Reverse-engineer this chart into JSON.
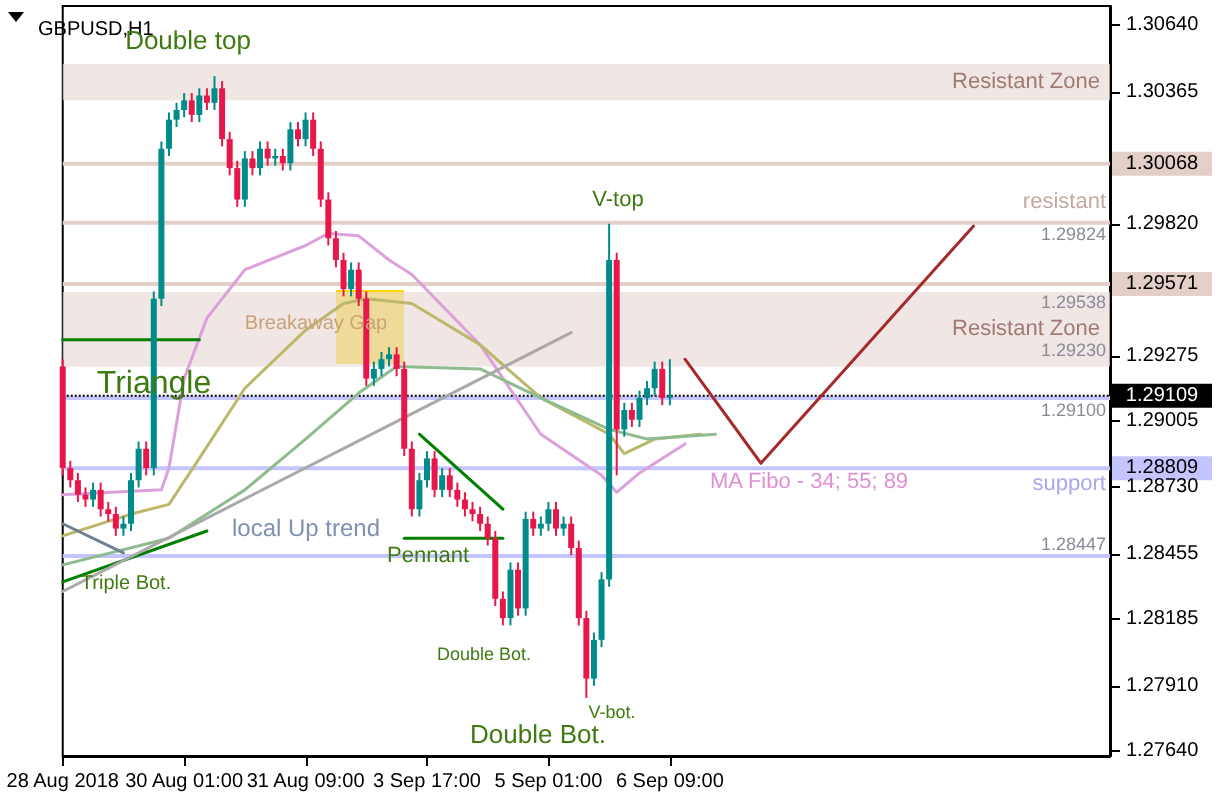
{
  "chart_data": {
    "type": "candlestick",
    "title": "GBPUSD,H1",
    "categories": [
      "28 Aug 2018",
      null,
      null,
      null,
      null,
      null,
      null,
      null,
      null,
      null,
      null,
      null,
      null,
      null,
      null,
      null,
      "30 Aug 01:00",
      null,
      null,
      null,
      null,
      null,
      null,
      null,
      null,
      null,
      null,
      null,
      null,
      null,
      null,
      null,
      "31 Aug 09:00",
      null,
      null,
      null,
      null,
      null,
      null,
      null,
      null,
      null,
      null,
      null,
      null,
      null,
      null,
      null,
      "3 Sep 17:00",
      null,
      null,
      null,
      null,
      null,
      null,
      null,
      null,
      null,
      null,
      null,
      null,
      null,
      null,
      null,
      "5 Sep 01:00",
      null,
      null,
      null,
      null,
      null,
      null,
      null,
      null,
      null,
      null,
      null,
      null,
      null,
      null,
      null,
      "6 Sep 09:00",
      null,
      null,
      null,
      null,
      null,
      null,
      null,
      null,
      null,
      null,
      null,
      null,
      null,
      null,
      null,
      null,
      null,
      null,
      null,
      null,
      null,
      null,
      null,
      null,
      null,
      null,
      null,
      null,
      null,
      null,
      null,
      null,
      null,
      null,
      null,
      null,
      null,
      null,
      null,
      null,
      null,
      null,
      null,
      null,
      null,
      null,
      null,
      null,
      null,
      null,
      null,
      null,
      null,
      null,
      null,
      null,
      null,
      null
    ],
    "ylim": [
      1.2762,
      1.3072
    ],
    "yticks": [
      {
        "value": 1.2764,
        "label": "1.27640"
      },
      {
        "value": 1.2791,
        "label": "1.27910"
      },
      {
        "value": 1.28185,
        "label": "1.28185"
      },
      {
        "value": 1.28455,
        "label": "1.28455"
      },
      {
        "value": 1.2873,
        "label": "1.28730"
      },
      {
        "value": 1.29005,
        "label": "1.29005"
      },
      {
        "value": 1.29275,
        "label": "1.29275"
      },
      {
        "value": 1.2982,
        "label": "1.29820"
      },
      {
        "value": 1.30365,
        "label": "1.30365"
      },
      {
        "value": 1.3064,
        "label": "1.30640"
      }
    ],
    "series": [
      {
        "ohlc": [
          [
            1.2923,
            1.2926,
            1.2878,
            1.2881
          ],
          [
            1.2881,
            1.2884,
            1.2873,
            1.2876
          ],
          [
            1.2876,
            1.2879,
            1.2867,
            1.287
          ],
          [
            1.287,
            1.2873,
            1.2865,
            1.2868
          ],
          [
            1.2868,
            1.2875,
            1.2865,
            1.2872
          ],
          [
            1.2872,
            1.2875,
            1.2861,
            1.2864
          ],
          [
            1.2864,
            1.2867,
            1.2859,
            1.2862
          ],
          [
            1.2862,
            1.2865,
            1.2853,
            1.2856
          ],
          [
            1.2856,
            1.2861,
            1.2853,
            1.2858
          ],
          [
            1.2858,
            1.2879,
            1.2855,
            1.2876
          ],
          [
            1.2876,
            1.2892,
            1.2873,
            1.2889
          ],
          [
            1.2889,
            1.2892,
            1.2878,
            1.2881
          ],
          [
            1.2881,
            1.2954,
            1.2878,
            1.2951
          ],
          [
            1.2951,
            1.3016,
            1.2948,
            1.3013
          ],
          [
            1.3013,
            1.3028,
            1.301,
            1.3025
          ],
          [
            1.3025,
            1.3032,
            1.3022,
            1.3029
          ],
          [
            1.3029,
            1.3036,
            1.3026,
            1.3033
          ],
          [
            1.3033,
            1.3036,
            1.3024,
            1.3027
          ],
          [
            1.3027,
            1.3038,
            1.3024,
            1.3035
          ],
          [
            1.3035,
            1.3038,
            1.3029,
            1.3032
          ],
          [
            1.3032,
            1.3043,
            1.3029,
            1.3038
          ],
          [
            1.3038,
            1.3041,
            1.3014,
            1.3017
          ],
          [
            1.3017,
            1.302,
            1.3002,
            1.3005
          ],
          [
            1.3005,
            1.3008,
            1.2989,
            1.2992
          ],
          [
            1.2992,
            1.3012,
            1.2989,
            1.3009
          ],
          [
            1.3009,
            1.3012,
            1.3002,
            1.3005
          ],
          [
            1.3005,
            1.3016,
            1.3002,
            1.3013
          ],
          [
            1.3013,
            1.3016,
            1.3006,
            1.3009
          ],
          [
            1.3009,
            1.3013,
            1.3006,
            1.301
          ],
          [
            1.301,
            1.3013,
            1.3004,
            1.3007
          ],
          [
            1.3007,
            1.3024,
            1.3004,
            1.3021
          ],
          [
            1.3021,
            1.3024,
            1.3014,
            1.3017
          ],
          [
            1.3017,
            1.3028,
            1.3014,
            1.3025
          ],
          [
            1.3025,
            1.3028,
            1.301,
            1.3013
          ],
          [
            1.3013,
            1.3016,
            1.2989,
            1.2992
          ],
          [
            1.2992,
            1.2995,
            1.2973,
            1.2976
          ],
          [
            1.2976,
            1.2979,
            1.2964,
            1.2967
          ],
          [
            1.2967,
            1.297,
            1.2952,
            1.2955
          ],
          [
            1.2955,
            1.2966,
            1.2952,
            1.2963
          ],
          [
            1.2963,
            1.2966,
            1.2948,
            1.2951
          ],
          [
            1.2951,
            1.2954,
            1.2915,
            1.2918
          ],
          [
            1.2918,
            1.2925,
            1.2915,
            1.2922
          ],
          [
            1.2922,
            1.2929,
            1.2919,
            1.2926
          ],
          [
            1.2926,
            1.2931,
            1.2923,
            1.2928
          ],
          [
            1.2928,
            1.2931,
            1.2919,
            1.2922
          ],
          [
            1.2922,
            1.2925,
            1.2886,
            1.2889
          ],
          [
            1.2889,
            1.2892,
            1.2861,
            1.2864
          ],
          [
            1.2864,
            1.2879,
            1.2861,
            1.2876
          ],
          [
            1.2876,
            1.2888,
            1.2873,
            1.2885
          ],
          [
            1.2885,
            1.2888,
            1.2869,
            1.2872
          ],
          [
            1.2872,
            1.2881,
            1.2869,
            1.2878
          ],
          [
            1.2878,
            1.2881,
            1.2869,
            1.2872
          ],
          [
            1.2872,
            1.2875,
            1.2865,
            1.2868
          ],
          [
            1.2868,
            1.2871,
            1.2861,
            1.2864
          ],
          [
            1.2864,
            1.2867,
            1.2859,
            1.2862
          ],
          [
            1.2862,
            1.2865,
            1.2855,
            1.2858
          ],
          [
            1.2858,
            1.2861,
            1.2849,
            1.2852
          ],
          [
            1.2852,
            1.2855,
            1.2824,
            1.2827
          ],
          [
            1.2827,
            1.283,
            1.2816,
            1.2819
          ],
          [
            1.2819,
            1.2842,
            1.2816,
            1.2839
          ],
          [
            1.2839,
            1.2842,
            1.282,
            1.2823
          ],
          [
            1.2823,
            1.2863,
            1.282,
            1.286
          ],
          [
            1.286,
            1.2863,
            1.2853,
            1.2856
          ],
          [
            1.2856,
            1.2861,
            1.2853,
            1.2858
          ],
          [
            1.2858,
            1.2867,
            1.2855,
            1.2864
          ],
          [
            1.2864,
            1.2867,
            1.2853,
            1.2856
          ],
          [
            1.2856,
            1.2861,
            1.2853,
            1.2858
          ],
          [
            1.2858,
            1.2861,
            1.2845,
            1.2848
          ],
          [
            1.2848,
            1.2851,
            1.2816,
            1.2819
          ],
          [
            1.2819,
            1.2822,
            1.2786,
            1.2794
          ],
          [
            1.2794,
            1.2813,
            1.2791,
            1.281
          ],
          [
            1.281,
            1.2838,
            1.2807,
            1.2835
          ],
          [
            1.2835,
            1.2982,
            1.2832,
            1.2967
          ],
          [
            1.2967,
            1.297,
            1.2878,
            1.2897
          ],
          [
            1.2897,
            1.2908,
            1.2894,
            1.2905
          ],
          [
            1.2905,
            1.2908,
            1.2898,
            1.2901
          ],
          [
            1.2901,
            1.2913,
            1.2898,
            1.291
          ],
          [
            1.291,
            1.2917,
            1.2907,
            1.2914
          ],
          [
            1.2914,
            1.2925,
            1.2911,
            1.2922
          ],
          [
            1.2922,
            1.2925,
            1.2907,
            1.291
          ],
          [
            1.291,
            1.2926,
            1.2907,
            1.2911
          ],
          null,
          null,
          null,
          null,
          null,
          null,
          null,
          null,
          null,
          null,
          null,
          null,
          null,
          null,
          null,
          null,
          null,
          null,
          null,
          null,
          null,
          null,
          null,
          null,
          null,
          null,
          null,
          null,
          null,
          null,
          null,
          null,
          null,
          null,
          null,
          null,
          null,
          null,
          null,
          null,
          null,
          null,
          null,
          null,
          null,
          null,
          null,
          null,
          null,
          null,
          null,
          null,
          null,
          null,
          null,
          null,
          null,
          null
        ],
        "colors": [
          "#e8174b",
          "#e8174b",
          "#e8174b",
          "#e8174b",
          "#008b8b",
          "#e8174b",
          "#e8174b",
          "#e8174b",
          "#008b8b",
          "#008b8b",
          "#008b8b",
          "#e8174b",
          "#008b8b",
          "#008b8b",
          "#008b8b",
          "#008b8b",
          "#008b8b",
          "#e8174b",
          "#008b8b",
          "#e8174b",
          "#008b8b",
          "#e8174b",
          "#e8174b",
          "#e8174b",
          "#008b8b",
          "#e8174b",
          "#008b8b",
          "#e8174b",
          "#008b8b",
          "#e8174b",
          "#008b8b",
          "#e8174b",
          "#008b8b",
          "#e8174b",
          "#e8174b",
          "#e8174b",
          "#e8174b",
          "#e8174b",
          "#008b8b",
          "#e8174b",
          "#e8174b",
          "#008b8b",
          "#008b8b",
          "#008b8b",
          "#e8174b",
          "#e8174b",
          "#e8174b",
          "#008b8b",
          "#008b8b",
          "#e8174b",
          "#008b8b",
          "#e8174b",
          "#e8174b",
          "#e8174b",
          "#e8174b",
          "#e8174b",
          "#e8174b",
          "#e8174b",
          "#e8174b",
          "#008b8b",
          "#e8174b",
          "#008b8b",
          "#e8174b",
          "#008b8b",
          "#008b8b",
          "#e8174b",
          "#008b8b",
          "#e8174b",
          "#e8174b",
          "#e8174b",
          "#008b8b",
          "#008b8b",
          "#008b8b",
          "#e8174b",
          "#008b8b",
          "#e8174b",
          "#008b8b",
          "#008b8b",
          "#008b8b",
          "#e8174b",
          "#008b8b",
          null,
          null,
          null,
          null,
          null,
          null,
          null,
          null,
          null,
          null,
          null,
          null,
          null,
          null,
          null,
          null,
          null,
          null,
          null,
          null,
          null,
          null,
          null,
          null,
          null,
          null,
          null,
          null,
          null,
          null,
          null,
          null,
          null,
          null,
          null,
          null,
          null,
          null,
          null,
          null,
          null,
          null,
          null,
          null,
          null,
          null,
          null,
          null,
          null,
          null,
          null,
          null,
          null,
          null,
          null,
          null,
          null,
          null
        ]
      },
      {
        "type": "line",
        "color": "#dda0dd",
        "values": [
          1.287,
          null,
          null,
          null,
          null,
          null,
          null,
          null,
          null,
          null,
          null,
          null,
          null,
          1.2872,
          1.2881,
          null,
          1.2918,
          null,
          null,
          1.2943,
          null,
          null,
          null,
          null,
          1.2963,
          null,
          null,
          null,
          null,
          null,
          null,
          null,
          1.2973,
          null,
          null,
          1.2978,
          null,
          null,
          null,
          1.2977,
          null,
          null,
          null,
          1.2967,
          null,
          null,
          1.2961,
          null,
          null,
          null,
          null,
          null,
          null,
          null,
          null,
          1.2932,
          null,
          null,
          null,
          null,
          null,
          null,
          null,
          1.2895,
          null,
          null,
          null,
          null,
          null,
          null,
          null,
          1.2878,
          null,
          1.2871,
          null,
          null,
          1.2879,
          null,
          null,
          null,
          null,
          null,
          1.2891,
          null,
          null,
          null,
          null,
          null,
          null,
          null,
          null,
          null,
          null,
          null,
          null,
          null,
          null,
          null,
          null,
          null,
          null,
          null,
          null,
          null,
          null,
          null,
          null,
          null,
          null,
          null,
          null,
          null,
          null,
          null,
          null,
          null,
          null,
          null,
          null,
          null,
          null,
          null,
          null,
          null,
          null,
          null,
          null,
          null,
          null,
          null,
          null,
          null,
          null,
          null,
          null,
          null,
          null,
          null,
          null
        ]
      },
      {
        "type": "line",
        "color": "#bdb76b",
        "values": [
          1.2853,
          null,
          null,
          null,
          null,
          null,
          null,
          null,
          null,
          1.2862,
          null,
          null,
          null,
          null,
          1.2866,
          null,
          null,
          null,
          1.2885,
          null,
          null,
          null,
          null,
          null,
          1.2914,
          null,
          null,
          null,
          null,
          null,
          null,
          null,
          1.2938,
          null,
          null,
          null,
          null,
          1.2949,
          null,
          null,
          1.2951,
          null,
          null,
          null,
          null,
          null,
          1.2949,
          null,
          null,
          null,
          null,
          null,
          null,
          null,
          null,
          1.2932,
          null,
          null,
          null,
          null,
          null,
          null,
          null,
          1.291,
          null,
          null,
          null,
          null,
          null,
          null,
          null,
          null,
          1.2895,
          null,
          1.2887,
          null,
          null,
          null,
          1.2893,
          null,
          null,
          null,
          null,
          null,
          1.2895,
          null,
          null,
          null,
          null,
          null,
          null,
          null,
          null,
          null,
          null,
          null,
          null,
          null,
          null,
          null,
          null,
          null,
          null,
          null,
          null,
          null,
          null,
          null,
          null,
          null,
          null,
          null,
          null,
          null,
          null,
          null,
          null,
          null,
          null,
          null,
          null,
          null,
          null,
          null,
          null,
          null,
          null,
          null,
          null,
          null,
          null,
          null,
          null,
          null,
          null,
          null,
          null,
          null,
          null
        ]
      },
      {
        "type": "line",
        "color": "#8fbc8f",
        "values": [
          1.2841,
          null,
          null,
          null,
          null,
          null,
          null,
          null,
          null,
          null,
          null,
          null,
          null,
          null,
          1.2852,
          null,
          null,
          null,
          null,
          null,
          null,
          null,
          null,
          null,
          1.2872,
          null,
          null,
          null,
          null,
          null,
          null,
          null,
          1.2893,
          null,
          null,
          null,
          null,
          null,
          null,
          1.2912,
          null,
          null,
          null,
          null,
          1.2923,
          null,
          null,
          null,
          null,
          null,
          null,
          null,
          null,
          null,
          null,
          1.2922,
          null,
          null,
          null,
          null,
          null,
          null,
          null,
          1.291,
          null,
          null,
          null,
          null,
          null,
          null,
          null,
          null,
          1.2897,
          null,
          null,
          null,
          null,
          1.2893,
          null,
          null,
          null,
          null,
          null,
          null,
          null,
          null,
          1.2895,
          null,
          null,
          null,
          null,
          null,
          null,
          null,
          null,
          null,
          null,
          null,
          null,
          null,
          null,
          null,
          null,
          null,
          null,
          null,
          null,
          null,
          null,
          null,
          null,
          null,
          null,
          null,
          null,
          null,
          null,
          null,
          null,
          null,
          null,
          null,
          null,
          null,
          null,
          null,
          null,
          null,
          null,
          null,
          null,
          null,
          null,
          null,
          null,
          null,
          null,
          null,
          null
        ]
      },
      {
        "type": "line",
        "color": "#008000",
        "values": [
          1.2934,
          null,
          null,
          null,
          null,
          null,
          null,
          null,
          null,
          null,
          null,
          null,
          null,
          null,
          null,
          null,
          null,
          null,
          1.2934,
          null,
          null,
          null,
          null,
          null,
          null,
          null,
          null,
          null,
          null,
          null,
          null,
          null,
          null,
          null,
          null,
          null,
          null,
          null,
          null,
          null,
          null,
          null,
          null,
          null,
          null,
          null,
          null,
          null,
          null,
          null,
          null,
          null,
          null,
          null,
          null,
          null,
          null,
          null,
          null,
          null,
          null,
          null,
          null,
          null,
          null,
          null,
          null,
          null,
          null,
          null,
          null,
          null,
          null,
          null,
          null,
          null,
          null,
          null,
          null,
          null,
          null,
          null,
          null,
          null,
          null,
          null,
          null,
          null,
          null,
          null,
          null,
          null,
          null,
          null,
          null,
          null,
          null,
          null,
          null,
          null,
          null,
          null,
          null,
          null,
          null,
          null,
          null,
          null,
          null,
          null,
          null,
          null,
          null,
          null,
          null,
          null,
          null,
          null,
          null,
          null,
          null,
          null,
          null,
          null,
          null,
          null,
          null,
          null,
          null,
          null,
          null,
          null,
          null,
          null,
          null,
          null,
          null,
          null,
          null
        ]
      },
      {
        "type": "line",
        "color": "#008000",
        "values": [
          1.2834,
          null,
          null,
          null,
          null,
          null,
          null,
          null,
          null,
          null,
          null,
          null,
          null,
          null,
          null,
          null,
          null,
          null,
          null,
          1.2855,
          null,
          null,
          null,
          null,
          null,
          null,
          null,
          null,
          null,
          null,
          null,
          null,
          null,
          null,
          null,
          null,
          null,
          null,
          null,
          null,
          null,
          null,
          null,
          null,
          null,
          null,
          null,
          null,
          null,
          null,
          null,
          null,
          null,
          null,
          null,
          null,
          null,
          null,
          null,
          null,
          null,
          null,
          null,
          null,
          null,
          null,
          null,
          null,
          null,
          null,
          null,
          null,
          null,
          null,
          null,
          null,
          null,
          null,
          null,
          null,
          null,
          null,
          null,
          null,
          null,
          null,
          null,
          null,
          null,
          null,
          null,
          null,
          null,
          null,
          null,
          null,
          null,
          null,
          null,
          null,
          null,
          null,
          null,
          null,
          null,
          null,
          null,
          null,
          null,
          null,
          null,
          null,
          null,
          null,
          null,
          null,
          null,
          null,
          null,
          null,
          null,
          null,
          null,
          null,
          null,
          null,
          null,
          null,
          null,
          null,
          null,
          null,
          null,
          null,
          null,
          null,
          null,
          null,
          null
        ]
      },
      {
        "type": "line",
        "color": "#a9a9a9",
        "values": [
          1.283,
          null,
          null,
          null,
          null,
          null,
          null,
          null,
          null,
          null,
          null,
          null,
          null,
          null,
          null,
          null,
          null,
          null,
          null,
          null,
          null,
          null,
          null,
          null,
          null,
          null,
          null,
          null,
          null,
          null,
          null,
          null,
          null,
          null,
          null,
          null,
          null,
          null,
          null,
          null,
          null,
          null,
          null,
          null,
          null,
          null,
          null,
          null,
          null,
          null,
          null,
          null,
          null,
          null,
          null,
          null,
          null,
          null,
          null,
          null,
          null,
          null,
          null,
          null,
          null,
          null,
          null,
          1.2937,
          null,
          null,
          null,
          null,
          null,
          null,
          null,
          null,
          null,
          null,
          null,
          null,
          null,
          null,
          null,
          null,
          null,
          null,
          null,
          null,
          null,
          null,
          null,
          null,
          null,
          null,
          null,
          null,
          null,
          null,
          null,
          null,
          null,
          null,
          null,
          null,
          null,
          null,
          null,
          null,
          null,
          null,
          null,
          null,
          null,
          null,
          null,
          null,
          null,
          null,
          null,
          null,
          null,
          null,
          null,
          null,
          null,
          null,
          null,
          null,
          null,
          null,
          null,
          null,
          null,
          null,
          null,
          null,
          null,
          null,
          null
        ]
      },
      {
        "type": "line",
        "color": "#708090",
        "values": [
          1.2858,
          null,
          null,
          null,
          null,
          null,
          null,
          null,
          1.2846,
          null,
          null,
          null,
          null,
          null,
          null,
          null,
          null,
          null,
          null,
          null,
          null,
          null,
          null,
          null,
          null,
          null,
          null,
          null,
          null,
          null,
          null,
          null,
          null,
          null,
          null,
          null,
          null,
          null,
          null,
          null,
          null,
          null,
          null,
          null,
          null,
          null,
          null,
          null,
          null,
          null,
          null,
          null,
          null,
          null,
          null,
          null,
          null,
          null,
          null,
          null,
          null,
          null,
          null,
          null,
          null,
          null,
          null,
          null,
          null,
          null,
          null,
          null,
          null,
          null,
          null,
          null,
          null,
          null,
          null,
          null,
          null,
          null,
          null,
          null,
          null,
          null,
          null,
          null,
          null,
          null,
          null,
          null,
          null,
          null,
          null,
          null,
          null,
          null,
          null,
          null,
          null,
          null,
          null,
          null,
          null,
          null,
          null,
          null,
          null,
          null,
          null,
          null,
          null,
          null,
          null,
          null,
          null,
          null,
          null,
          null,
          null,
          null,
          null,
          null,
          null,
          null,
          null,
          null,
          null,
          null,
          null,
          null,
          null,
          null,
          null,
          null,
          null,
          null,
          null
        ]
      },
      {
        "type": "line",
        "color": "#008000",
        "values": [
          null,
          null,
          null,
          null,
          null,
          null,
          null,
          null,
          null,
          null,
          null,
          null,
          null,
          null,
          null,
          null,
          null,
          null,
          null,
          null,
          null,
          null,
          null,
          null,
          null,
          null,
          null,
          null,
          null,
          null,
          null,
          null,
          null,
          null,
          null,
          null,
          null,
          null,
          null,
          null,
          null,
          null,
          null,
          null,
          null,
          null,
          null,
          1.2895,
          null,
          null,
          null,
          null,
          null,
          null,
          null,
          null,
          null,
          null,
          1.2864,
          null,
          null,
          null,
          null,
          null,
          null,
          null,
          null,
          null,
          null,
          null,
          null,
          null,
          null,
          null,
          null,
          null,
          null,
          null,
          null,
          null,
          null,
          null,
          null,
          null,
          null,
          null,
          null,
          null,
          null,
          null,
          null,
          null,
          null,
          null,
          null,
          null,
          null,
          null,
          null,
          null,
          null,
          null,
          null,
          null,
          null,
          null,
          null,
          null,
          null,
          null,
          null,
          null,
          null,
          null,
          null,
          null,
          null,
          null,
          null,
          null,
          null,
          null,
          null,
          null,
          null,
          null,
          null,
          null,
          null,
          null,
          null,
          null,
          null,
          null,
          null,
          null,
          null,
          null,
          null
        ]
      },
      {
        "type": "line",
        "color": "#008000",
        "values": [
          null,
          null,
          null,
          null,
          null,
          null,
          null,
          null,
          null,
          null,
          null,
          null,
          null,
          null,
          null,
          null,
          null,
          null,
          null,
          null,
          null,
          null,
          null,
          null,
          null,
          null,
          null,
          null,
          null,
          null,
          null,
          null,
          null,
          null,
          null,
          null,
          null,
          null,
          null,
          null,
          null,
          null,
          null,
          null,
          null,
          1.2852,
          null,
          null,
          null,
          null,
          null,
          null,
          null,
          null,
          null,
          null,
          null,
          null,
          1.2852,
          null,
          null,
          null,
          null,
          null,
          null,
          null,
          null,
          null,
          null,
          null,
          null,
          null,
          null,
          null,
          null,
          null,
          null,
          null,
          null,
          null,
          null,
          null,
          null,
          null,
          null,
          null,
          null,
          null,
          null,
          null,
          null,
          null,
          null,
          null,
          null,
          null,
          null,
          null,
          null,
          null,
          null,
          null,
          null,
          null,
          null,
          null,
          null,
          null,
          null,
          null,
          null,
          null,
          null,
          null,
          null,
          null,
          null,
          null,
          null,
          null,
          null,
          null,
          null,
          null,
          null,
          null,
          null,
          null,
          null,
          null,
          null,
          null,
          null,
          null,
          null,
          null,
          null,
          null,
          null
        ]
      },
      {
        "type": "line",
        "color": "#a52a2a",
        "values": [
          null,
          null,
          null,
          null,
          null,
          null,
          null,
          null,
          null,
          null,
          null,
          null,
          null,
          null,
          null,
          null,
          null,
          null,
          null,
          null,
          null,
          null,
          null,
          null,
          null,
          null,
          null,
          null,
          null,
          null,
          null,
          null,
          null,
          null,
          null,
          null,
          null,
          null,
          null,
          null,
          null,
          null,
          null,
          null,
          null,
          null,
          null,
          null,
          null,
          null,
          null,
          null,
          null,
          null,
          null,
          null,
          null,
          null,
          null,
          null,
          null,
          null,
          null,
          null,
          null,
          null,
          null,
          null,
          null,
          null,
          null,
          null,
          null,
          null,
          null,
          null,
          null,
          null,
          null,
          null,
          null,
          null,
          1.2926,
          null,
          null,
          null,
          null,
          null,
          null,
          null,
          null,
          null,
          1.2883,
          null,
          null,
          null,
          null,
          null,
          null,
          null,
          null,
          null,
          null,
          null,
          null,
          null,
          null,
          null,
          null,
          null,
          null,
          null,
          null,
          null,
          null,
          null,
          null,
          null,
          null,
          null,
          1.2981,
          null,
          null,
          null,
          null,
          null,
          null,
          null,
          null,
          null,
          null,
          null,
          null,
          null,
          null,
          null,
          null,
          null,
          null
        ]
      }
    ],
    "marker": "none",
    "bands": [
      {
        "axis": "y",
        "from": 1.3033,
        "to": 1.3048,
        "label": "Resistant Zone",
        "color": "#eadcd7"
      },
      {
        "axis": "y",
        "from": 1.2923,
        "to": 1.29538,
        "label": "Resistant Zone",
        "color": "#eadcd7"
      }
    ],
    "ref_lines": [
      {
        "axis": "y",
        "value": 1.30068,
        "label": "1.30068",
        "color": "#e3cfc8"
      },
      {
        "axis": "y",
        "value": 1.29824,
        "color": "#e3cfc8"
      },
      {
        "axis": "y",
        "value": 1.29571,
        "label": "1.29571",
        "color": "#e3cfc8"
      },
      {
        "axis": "y",
        "value": 1.291,
        "color": "#c4c4ff"
      },
      {
        "axis": "y",
        "value": 1.29109,
        "label": "1.29109",
        "color": "#000000",
        "line_style": "dotted"
      },
      {
        "axis": "y",
        "value": 1.28809,
        "label": "1.28809",
        "color": "#c4c4ff"
      },
      {
        "axis": "y",
        "value": 1.28447,
        "color": "#c4c4ff"
      }
    ],
    "annotations": [
      "Double top",
      "V-top",
      "Triangle",
      "Breakaway Gap",
      "local Up trend",
      "Triple Bot.",
      {
        "text": "Pennant",
        "y": 1.2852
      },
      "Double Bot.",
      "V-bot.",
      "Double Bot.",
      "MA Fibo - 34; 55; 89",
      "resistant",
      "1.29824",
      "1.29538",
      "1.29230",
      "1.29100",
      "support",
      "1.28447"
    ]
  }
}
